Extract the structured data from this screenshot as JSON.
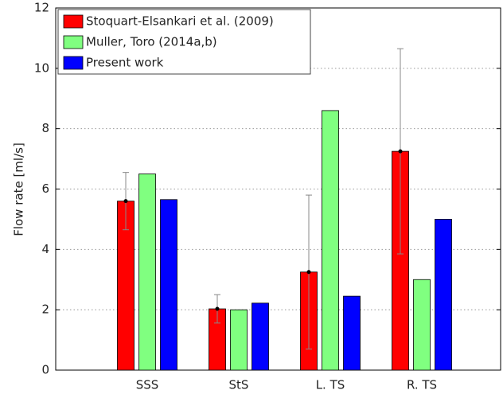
{
  "chart_data": {
    "type": "bar",
    "y_label": "Flow rate [ml/s]",
    "categories": [
      "SSS",
      "StS",
      "L. TS",
      "R. TS"
    ],
    "series": [
      {
        "name": "Stoquart-Elsankari et al. (2009)",
        "color": "#ff0000",
        "values": [
          5.6,
          2.03,
          3.25,
          7.25
        ],
        "errors": [
          0.95,
          0.47,
          2.55,
          3.4
        ]
      },
      {
        "name": "Muller, Toro (2014a,b)",
        "color": "#80ff80",
        "values": [
          6.5,
          2.0,
          8.6,
          3.0
        ]
      },
      {
        "name": "Present work",
        "color": "#0000ff",
        "values": [
          5.65,
          2.22,
          2.45,
          5.0
        ]
      }
    ],
    "ylim": [
      0,
      12
    ],
    "yticks": [
      0,
      2,
      4,
      6,
      8,
      10,
      12
    ],
    "grid": true,
    "legend": "upper left"
  }
}
